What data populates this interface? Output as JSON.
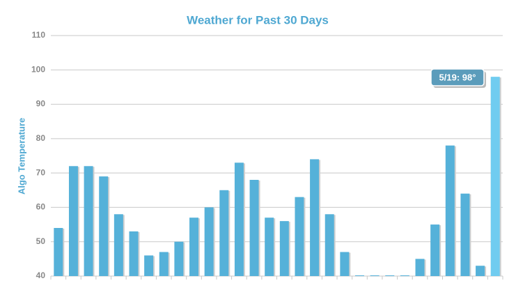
{
  "chart_data": {
    "type": "bar",
    "title": "Weather for Past 30 Days",
    "y_label": "Algo Temperature",
    "categories": [
      null,
      null,
      null,
      null,
      null,
      null,
      null,
      null,
      null,
      null,
      null,
      null,
      null,
      null,
      null,
      null,
      null,
      null,
      null,
      null,
      null,
      null,
      null,
      null,
      null,
      null,
      null,
      null,
      null,
      null
    ],
    "values": [
      54,
      72,
      72,
      69,
      58,
      53,
      46,
      47,
      50,
      57,
      60,
      65,
      73,
      68,
      57,
      56,
      63,
      74,
      58,
      47,
      40.2,
      40.2,
      40.2,
      40.2,
      45,
      55,
      78,
      64,
      43,
      98
    ],
    "colors": [
      "#55b1d9",
      "#55b1d9",
      "#55b1d9",
      "#55b1d9",
      "#55b1d9",
      "#55b1d9",
      "#55b1d9",
      "#55b1d9",
      "#55b1d9",
      "#55b1d9",
      "#55b1d9",
      "#55b1d9",
      "#55b1d9",
      "#55b1d9",
      "#55b1d9",
      "#55b1d9",
      "#55b1d9",
      "#55b1d9",
      "#55b1d9",
      "#55b1d9",
      "#55b1d9",
      "#55b1d9",
      "#55b1d9",
      "#55b1d9",
      "#55b1d9",
      "#55b1d9",
      "#55b1d9",
      "#55b1d9",
      "#55b1d9",
      "#70ccf0"
    ],
    "tooltip": "5/19: 98°",
    "ylim": [
      40,
      110
    ],
    "yticks": [
      40,
      50,
      60,
      70,
      80,
      90,
      100,
      110
    ],
    "grid": true
  }
}
